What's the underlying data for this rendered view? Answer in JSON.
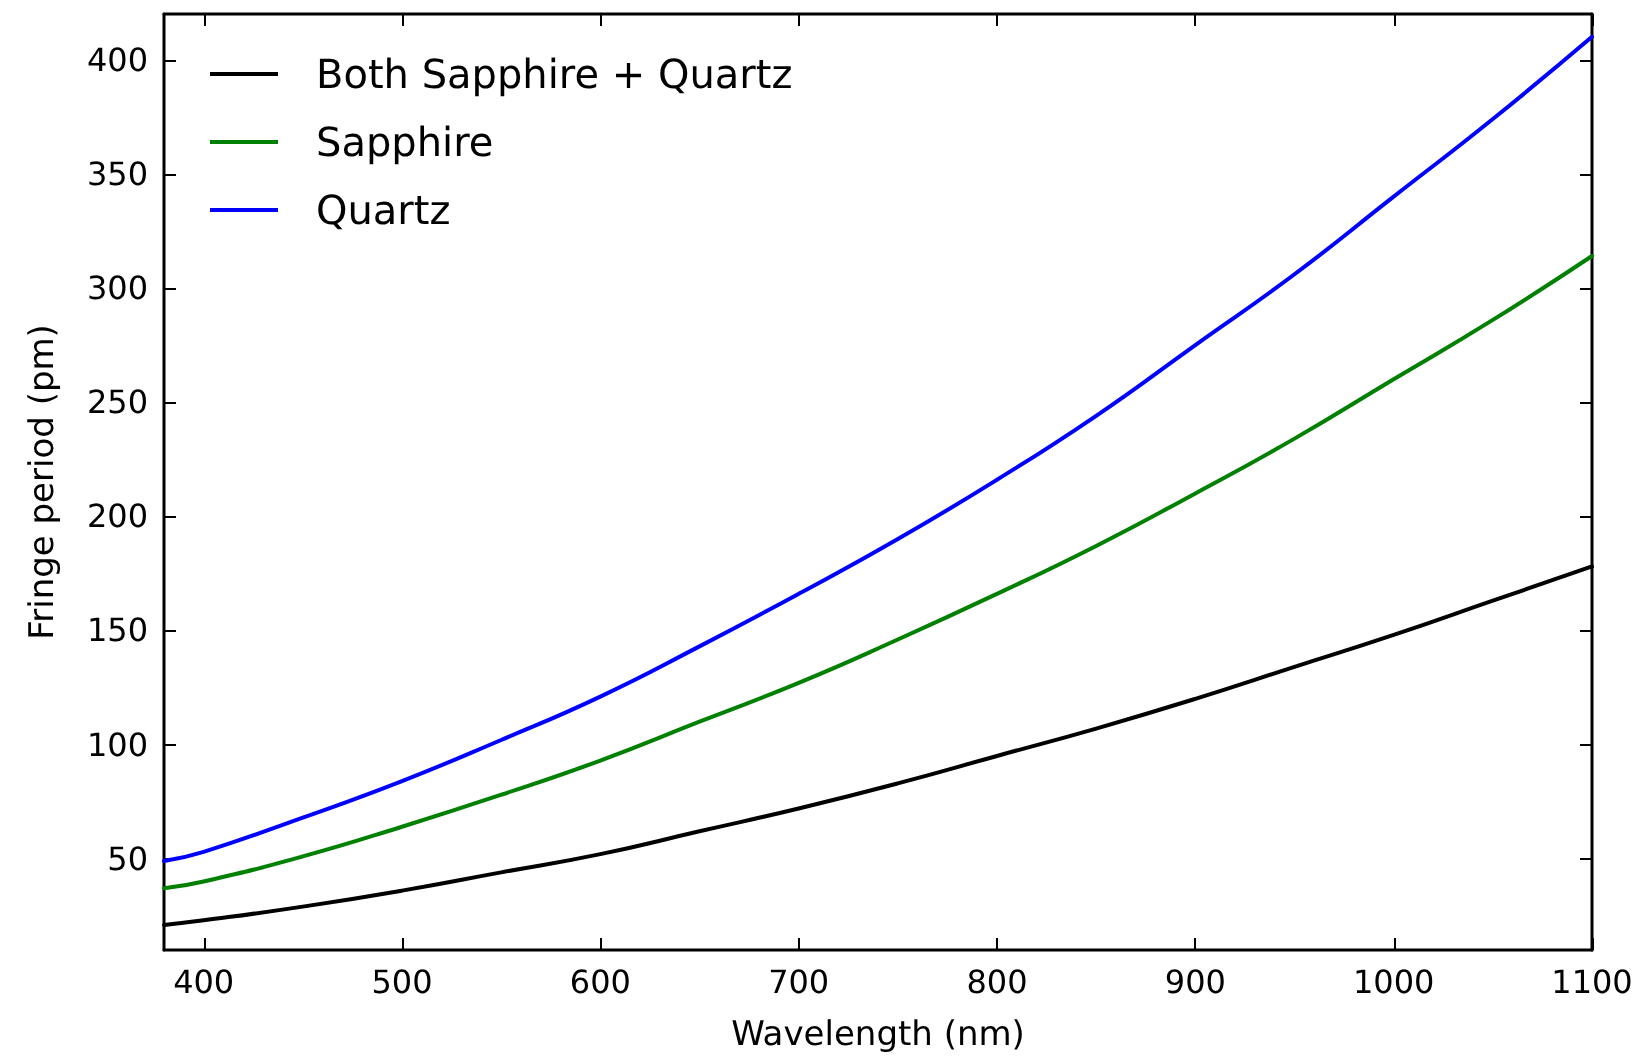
{
  "chart_data": {
    "type": "line",
    "xlabel": "Wavelength (nm)",
    "ylabel": "Fringe period (pm)",
    "x": [
      380,
      400,
      450,
      500,
      550,
      600,
      650,
      700,
      750,
      800,
      850,
      900,
      950,
      1000,
      1050,
      1100
    ],
    "series": [
      {
        "name": "Both Sapphire + Quartz",
        "color": "#000000",
        "values": [
          21,
          23,
          29,
          36,
          44,
          52,
          62,
          72,
          83,
          95,
          107,
          120,
          134,
          148,
          163,
          178
        ]
      },
      {
        "name": "Sapphire",
        "color": "#008000",
        "values": [
          37,
          40,
          51,
          64,
          78,
          93,
          110,
          127,
          146,
          166,
          187,
          210,
          234,
          260,
          286,
          314
        ]
      },
      {
        "name": "Quartz",
        "color": "#0000ff",
        "values": [
          49,
          53,
          68,
          84,
          102,
          121,
          143,
          166,
          190,
          216,
          244,
          275,
          306,
          340,
          374,
          410
        ]
      }
    ],
    "xlim": [
      380,
      1100
    ],
    "ylim": [
      10,
      420
    ],
    "xticks": [
      400,
      500,
      600,
      700,
      800,
      900,
      1000,
      1100
    ],
    "yticks": [
      50,
      100,
      150,
      200,
      250,
      300,
      350,
      400
    ],
    "grid": false,
    "legend": "top left",
    "marker": "none",
    "line_style": "solid"
  }
}
